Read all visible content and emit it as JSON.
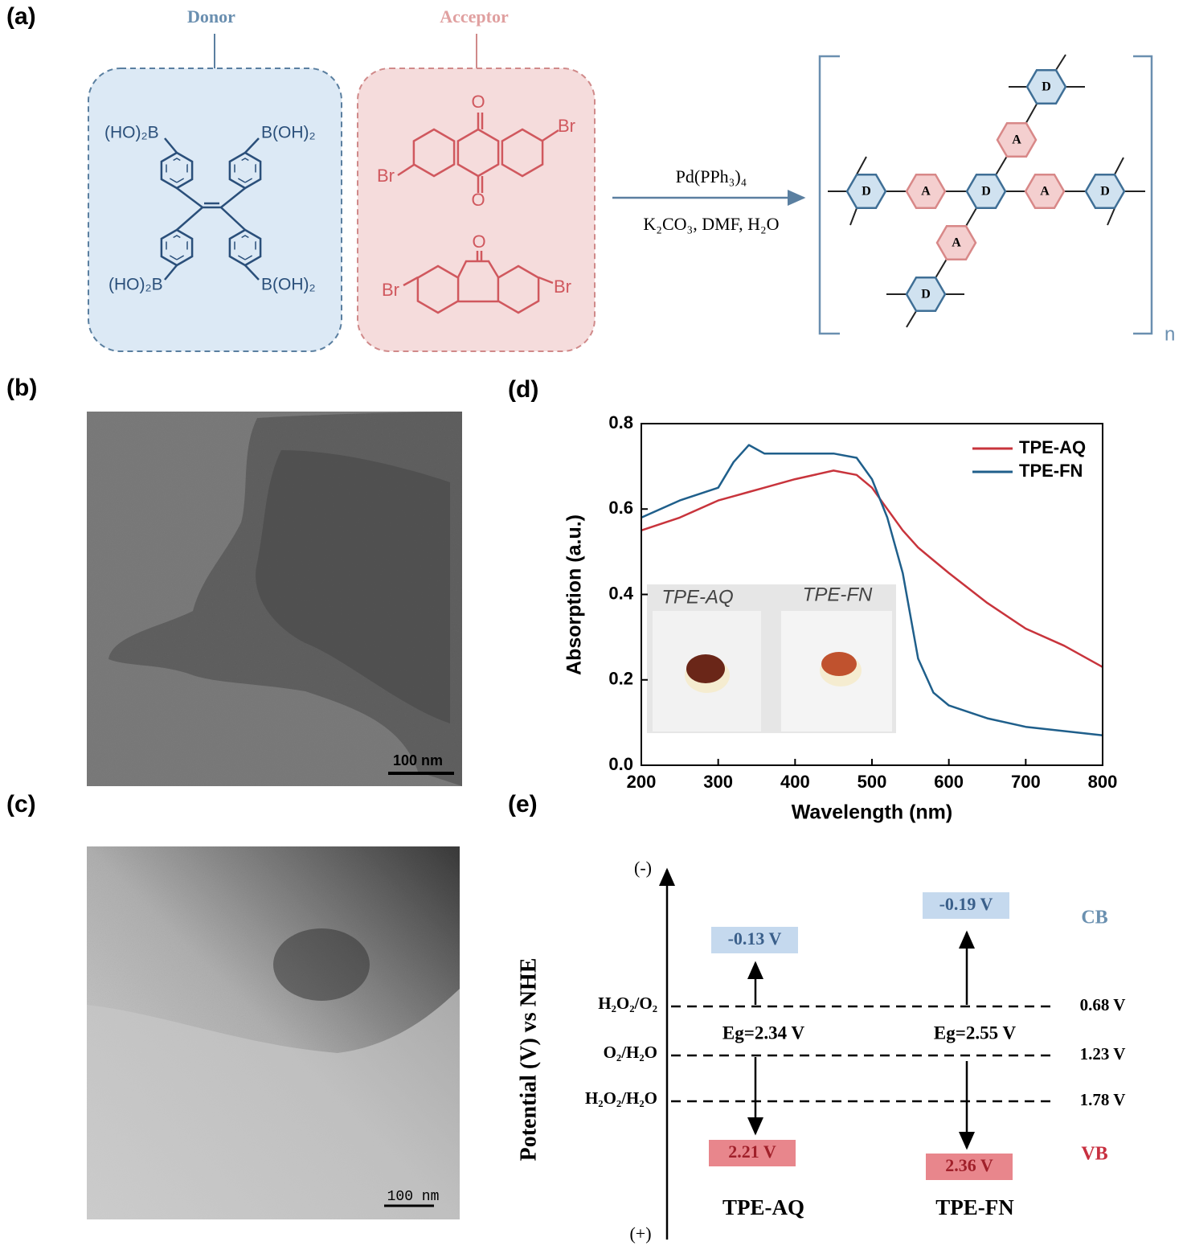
{
  "panel_labels": {
    "a": "(a)",
    "b": "(b)",
    "c": "(c)",
    "d": "(d)",
    "e": "(e)"
  },
  "scheme": {
    "donor_title": "Donor",
    "acceptor_title": "Acceptor",
    "donor_groups": [
      "(HO)₂B",
      "B(OH)₂",
      "(HO)₂B",
      "B(OH)₂"
    ],
    "acceptor_1_atoms": [
      "O",
      "O",
      "Br",
      "Br"
    ],
    "acceptor_2_atoms": [
      "O",
      "Br",
      "Br"
    ],
    "catalyst": "Pd(PPh₃)₄",
    "conditions": "K₂CO₃, DMF, H₂O",
    "donor_unit": "D",
    "acceptor_unit": "A",
    "repeat": "n"
  },
  "tem": {
    "scale_b": "100 nm",
    "scale_c": "100 nm"
  },
  "chart_data": {
    "type": "line",
    "x_label": "Wavelength (nm)",
    "y_label": "Absorption (a.u.)",
    "x": [
      200,
      250,
      300,
      320,
      340,
      360,
      400,
      450,
      480,
      500,
      520,
      540,
      560,
      580,
      600,
      650,
      700,
      750,
      800
    ],
    "series": [
      {
        "name": "TPE-AQ",
        "color": "#c8343c",
        "values": [
          0.55,
          0.58,
          0.62,
          0.63,
          0.64,
          0.65,
          0.67,
          0.69,
          0.68,
          0.65,
          0.6,
          0.55,
          0.51,
          0.48,
          0.45,
          0.38,
          0.32,
          0.28,
          0.23
        ]
      },
      {
        "name": "TPE-FN",
        "color": "#1f5f8b",
        "values": [
          0.58,
          0.62,
          0.65,
          0.71,
          0.75,
          0.73,
          0.73,
          0.73,
          0.72,
          0.67,
          0.58,
          0.45,
          0.25,
          0.17,
          0.14,
          0.11,
          0.09,
          0.08,
          0.07
        ]
      }
    ],
    "xlim": [
      200,
      800
    ],
    "xticks": [
      200,
      300,
      400,
      500,
      600,
      700,
      800
    ],
    "ylim": [
      0,
      0.8
    ],
    "yticks": [
      {
        "value": 0,
        "label": "0.0"
      },
      0.2,
      0.4,
      0.6,
      0.8
    ],
    "legend": "upper right",
    "inset_labels": [
      "TPE-AQ",
      "TPE-FN"
    ]
  },
  "energy": {
    "axis_label": "Potential (V) vs NHE",
    "neg": "(-)",
    "pos": "(+)",
    "levels": [
      {
        "label": "H₂O₂/O₂",
        "potential": "0.68 V"
      },
      {
        "label": "O₂/H₂O",
        "potential": "1.23 V"
      },
      {
        "label": "H₂O₂/H₂O",
        "potential": "1.78 V"
      }
    ],
    "materials": [
      {
        "name": "TPE-AQ",
        "cb": "-0.13 V",
        "vb": "2.21 V",
        "eg": "Eg=2.34 V"
      },
      {
        "name": "TPE-FN",
        "cb": "-0.19 V",
        "vb": "2.36 V",
        "eg": "Eg=2.55 V"
      }
    ],
    "cb_label": "CB",
    "vb_label": "VB"
  }
}
